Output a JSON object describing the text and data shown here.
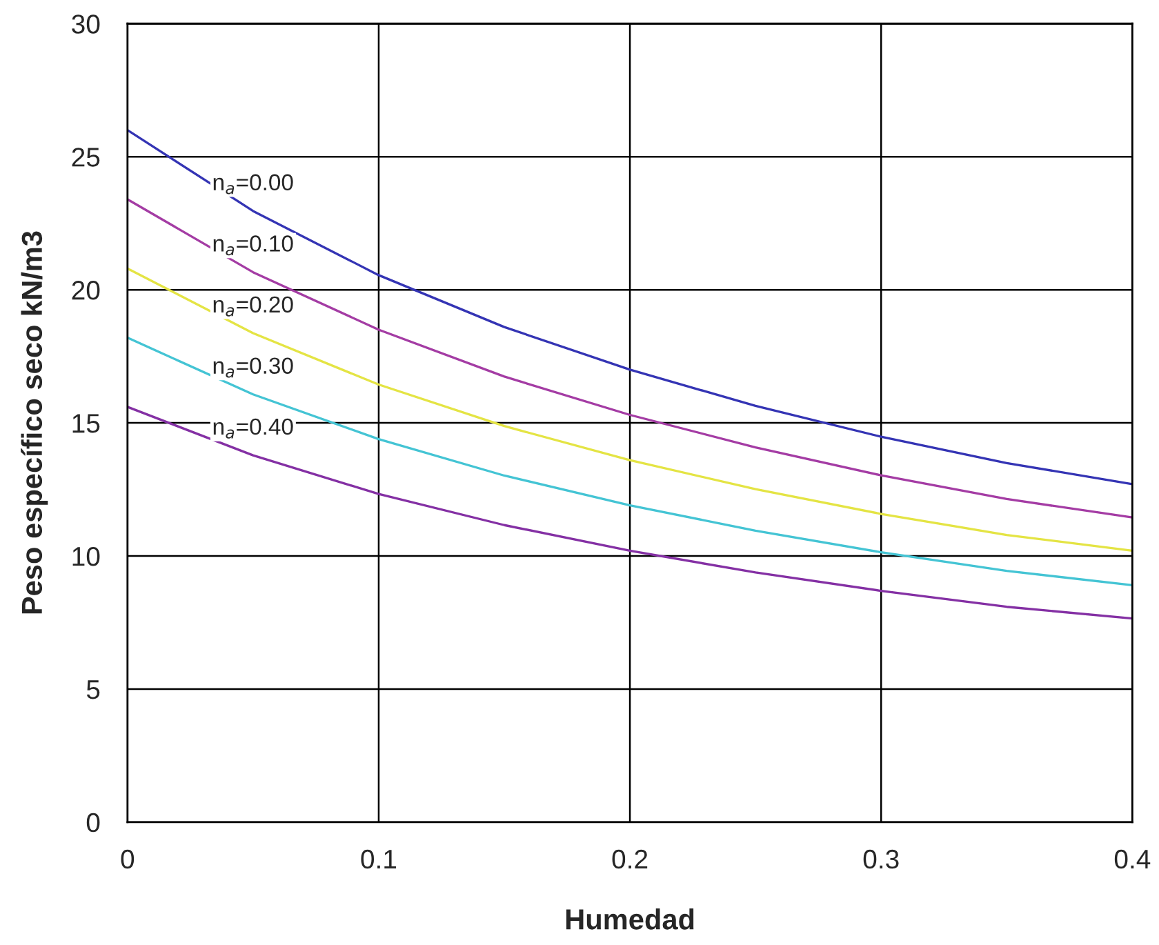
{
  "chart_data": {
    "type": "line",
    "xlabel": "Humedad",
    "ylabel": "Peso específico seco kN/m3",
    "x": [
      0,
      0.05,
      0.1,
      0.15,
      0.2,
      0.25,
      0.3,
      0.35,
      0.4
    ],
    "series": [
      {
        "name": "n$_{a}$=0.00",
        "color": "#3434b4",
        "values": [
          26.0,
          22.96,
          20.55,
          18.6,
          17.0,
          15.64,
          14.48,
          13.49,
          12.7
        ]
      },
      {
        "name": "n$_{a}$=0.10",
        "color": "#a43ca4",
        "values": [
          23.4,
          20.66,
          18.5,
          16.74,
          15.3,
          14.08,
          13.03,
          12.14,
          11.45
        ]
      },
      {
        "name": "n$_{a}$=0.20",
        "color": "#e4e444",
        "values": [
          20.8,
          18.37,
          16.44,
          14.88,
          13.6,
          12.51,
          11.58,
          10.79,
          10.2
        ]
      },
      {
        "name": "n$_{a}$=0.30",
        "color": "#44c4d4",
        "values": [
          18.2,
          16.07,
          14.39,
          13.02,
          11.9,
          10.95,
          10.14,
          9.44,
          8.9
        ]
      },
      {
        "name": "n$_{a}$=0.40",
        "color": "#8430a4",
        "values": [
          15.6,
          13.78,
          12.33,
          11.16,
          10.2,
          9.38,
          8.69,
          8.09,
          7.65
        ]
      }
    ],
    "xlim": [
      0,
      0.4
    ],
    "xticks": [
      0,
      0.1,
      0.2,
      0.3,
      0.4
    ],
    "ylim": [
      0,
      30
    ],
    "yticks": [
      0,
      5,
      10,
      15,
      20,
      25,
      30
    ],
    "grid": true,
    "legend": false,
    "marker": "none",
    "line_style": "solid"
  }
}
